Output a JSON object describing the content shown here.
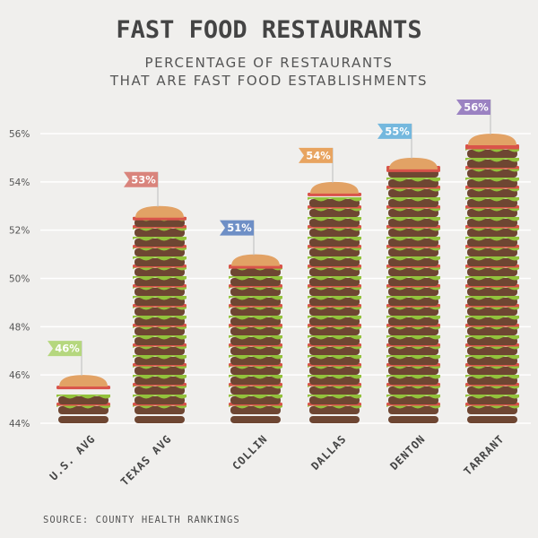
{
  "title": "FAST FOOD RESTAURANTS",
  "subtitle_lines": [
    "PERCENTAGE OF RESTAURANTS",
    "THAT ARE FAST FOOD ESTABLISHMENTS"
  ],
  "source": "SOURCE: COUNTY HEALTH RANKINGS",
  "colors": {
    "background": "#f0efed",
    "bun": "#e2a265",
    "patty": "#6e4632",
    "tomato": "#d9534a",
    "lettuce": "#93c23c",
    "axis_text": "#555555",
    "grid": "#ffffff"
  },
  "chart_data": {
    "type": "bar",
    "categories": [
      "U.S. AVG",
      "TEXAS AVG",
      "COLLIN",
      "DALLAS",
      "DENTON",
      "TARRANT"
    ],
    "values": [
      46,
      53,
      51,
      54,
      55,
      56
    ],
    "data_labels": [
      "46%",
      "53%",
      "51%",
      "54%",
      "55%",
      "56%"
    ],
    "flag_colors": [
      "#b5d77e",
      "#d9847c",
      "#6e8fc6",
      "#e8a460",
      "#74b8de",
      "#9b82c2"
    ],
    "ylim": [
      44,
      56
    ],
    "yticks": [
      44,
      46,
      48,
      50,
      52,
      54,
      56
    ],
    "ytick_labels": [
      "44%",
      "46%",
      "48%",
      "50%",
      "52%",
      "54%",
      "56%"
    ],
    "grid": true
  }
}
